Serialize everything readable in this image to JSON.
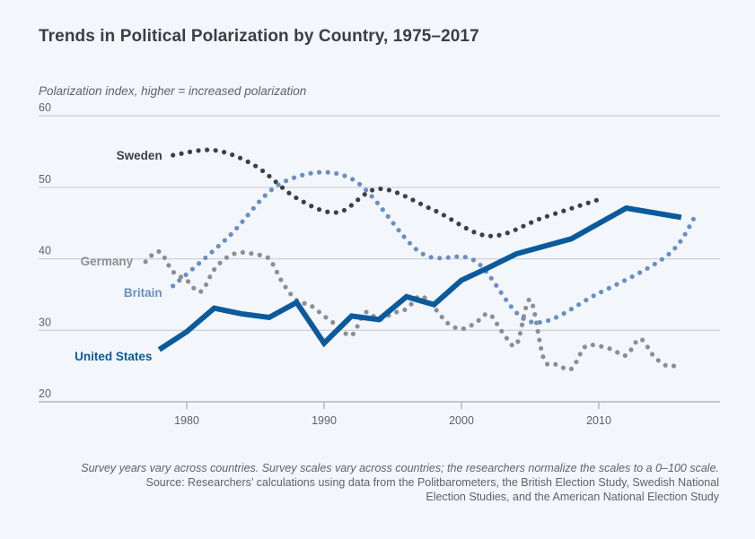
{
  "chart_data": {
    "type": "line",
    "title": "Trends in Political Polarization by Country, 1975–2017",
    "ylabel": "Polarization index, higher = increased polarization",
    "xlabel": "",
    "xlim": [
      1971,
      2019
    ],
    "ylim": [
      20,
      60
    ],
    "xticks": [
      1980,
      1990,
      2000,
      2010
    ],
    "yticks": [
      20,
      30,
      40,
      50,
      60
    ],
    "grid": true,
    "legend": "inline labels at left of each series",
    "series": [
      {
        "name": "Sweden",
        "style": "dotted",
        "color": "#3d3f42",
        "x": [
          1979,
          1982,
          1985,
          1988,
          1991,
          1994,
          1998,
          2002,
          2006,
          2010
        ],
        "values": [
          54.5,
          55.2,
          53.0,
          48.5,
          46.5,
          49.8,
          46.8,
          43.2,
          45.8,
          48.3
        ]
      },
      {
        "name": "Britain",
        "style": "dotted",
        "color": "#6a8ec4",
        "x": [
          1979,
          1983,
          1987,
          1992,
          1997,
          2001,
          2005,
          2010,
          2015,
          2017
        ],
        "values": [
          36.2,
          43.0,
          50.7,
          51.2,
          40.9,
          39.7,
          31.2,
          35.2,
          40.5,
          45.9
        ]
      },
      {
        "name": "Germany",
        "style": "dotted",
        "color": "#8d8e90",
        "x": [
          1977,
          1978,
          1979,
          1980,
          1981,
          1982,
          1983,
          1984,
          1985,
          1986,
          1987,
          1988,
          1989,
          1990,
          1991,
          1992,
          1993,
          1994,
          1995,
          1996,
          1997,
          1998,
          1999,
          2000,
          2001,
          2002,
          2003,
          2004,
          2005,
          2006,
          2007,
          2008,
          2009,
          2010,
          2011,
          2012,
          2013,
          2014,
          2015,
          2016
        ],
        "values": [
          39.6,
          41.0,
          38.2,
          37.0,
          35.4,
          38.5,
          40.3,
          40.9,
          40.6,
          40.0,
          36.6,
          34.2,
          33.5,
          32.0,
          30.6,
          29.3,
          32.5,
          31.5,
          32.4,
          33.0,
          34.8,
          33.2,
          31.0,
          30.2,
          31.0,
          32.3,
          29.7,
          28.0,
          34.3,
          26.0,
          25.2,
          24.6,
          27.7,
          27.8,
          27.3,
          26.5,
          28.8,
          26.4,
          25.0,
          25.3
        ]
      },
      {
        "name": "United States",
        "style": "solid",
        "color": "#0a5a9c",
        "x": [
          1978,
          1980,
          1982,
          1984,
          1986,
          1988,
          1990,
          1992,
          1994,
          1996,
          1998,
          2000,
          2002,
          2004,
          2008,
          2012,
          2016
        ],
        "values": [
          27.3,
          29.8,
          33.1,
          32.3,
          31.8,
          33.9,
          28.2,
          32.0,
          31.5,
          34.7,
          33.6,
          37.0,
          38.8,
          40.7,
          42.8,
          47.1,
          45.8
        ]
      }
    ]
  },
  "notes": {
    "line1": "Survey years vary across countries. Survey scales vary across countries; the researchers normalize the scales to a 0–100 scale.",
    "line2": "Source: Researchers’ calculations using data from the Politbarometers, the British Election Study, Swedish National",
    "line3": "Election Studies, and the  American National Election Study"
  },
  "colors": {
    "background": "#f3f7fb",
    "grid": "#cfd2d6",
    "text": "#3b3e42"
  }
}
